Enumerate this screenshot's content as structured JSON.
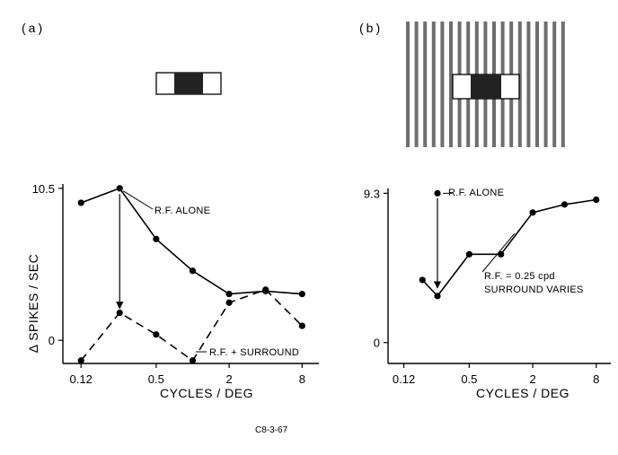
{
  "figure": {
    "code": "C8-3-67",
    "rf_color": "#222222",
    "flank_color": "#ffffff",
    "grating_color": "#555555"
  },
  "chart_data": [
    {
      "type": "line",
      "panel": "(a)",
      "xlabel": "CYCLES / DEG",
      "ylabel": "Δ SPIKES / SEC",
      "x_scale": "log",
      "x_ticks": [
        0.12,
        0.5,
        2,
        8
      ],
      "x_tick_labels": [
        "0.12",
        "0.5",
        "2",
        "8"
      ],
      "xlim": [
        0.085,
        11
      ],
      "y_ticks": [
        0,
        10.5
      ],
      "y_tick_labels": [
        "0",
        "10.5"
      ],
      "ylim": [
        -1.6,
        10.8
      ],
      "grid": false,
      "series": [
        {
          "name": "R.F. ALONE",
          "style": "solid",
          "x": [
            0.12,
            0.25,
            0.5,
            1,
            2,
            4,
            8
          ],
          "y": [
            9.5,
            10.5,
            7.0,
            4.8,
            3.2,
            3.4,
            3.2
          ]
        },
        {
          "name": "R.F. + SURROUND",
          "style": "dashed",
          "x": [
            0.12,
            0.25,
            0.5,
            1,
            2,
            4,
            8
          ],
          "y": [
            -1.4,
            1.9,
            0.4,
            -1.4,
            2.6,
            3.5,
            1.0
          ]
        }
      ],
      "annotations": [
        {
          "text": "R.F. ALONE",
          "target": "R.F. ALONE"
        },
        {
          "text": "R.F. + SURROUND",
          "target": "R.F. + SURROUND"
        }
      ],
      "arrow": {
        "x": 0.25,
        "from_y": 10.1,
        "to_y": 2.2
      }
    },
    {
      "type": "line",
      "panel": "(b)",
      "xlabel": "CYCLES / DEG",
      "ylabel": "",
      "x_scale": "log",
      "x_ticks": [
        0.12,
        0.5,
        2,
        8
      ],
      "x_tick_labels": [
        "0.12",
        "0.5",
        "2",
        "8"
      ],
      "xlim": [
        0.085,
        11
      ],
      "y_ticks": [
        0,
        9.3
      ],
      "y_tick_labels": [
        "0",
        "9.3"
      ],
      "ylim": [
        -1.3,
        9.6
      ],
      "grid": false,
      "series": [
        {
          "name": "R.F. = 0.25 cpd SURROUND VARIES",
          "style": "solid",
          "x": [
            0.18,
            0.25,
            0.5,
            1,
            2,
            4,
            8
          ],
          "y": [
            3.9,
            2.9,
            5.5,
            5.5,
            8.1,
            8.6,
            8.9
          ]
        }
      ],
      "reference_point": {
        "label": "R.F. ALONE",
        "x": 0.25,
        "y": 9.3
      },
      "annotations": [
        {
          "text": "R.F. ALONE"
        },
        {
          "text": "R.F. = 0.25 cpd"
        },
        {
          "text": "SURROUND VARIES"
        }
      ],
      "arrow": {
        "x": 0.25,
        "from_y": 9.0,
        "to_y": 3.4
      }
    }
  ]
}
